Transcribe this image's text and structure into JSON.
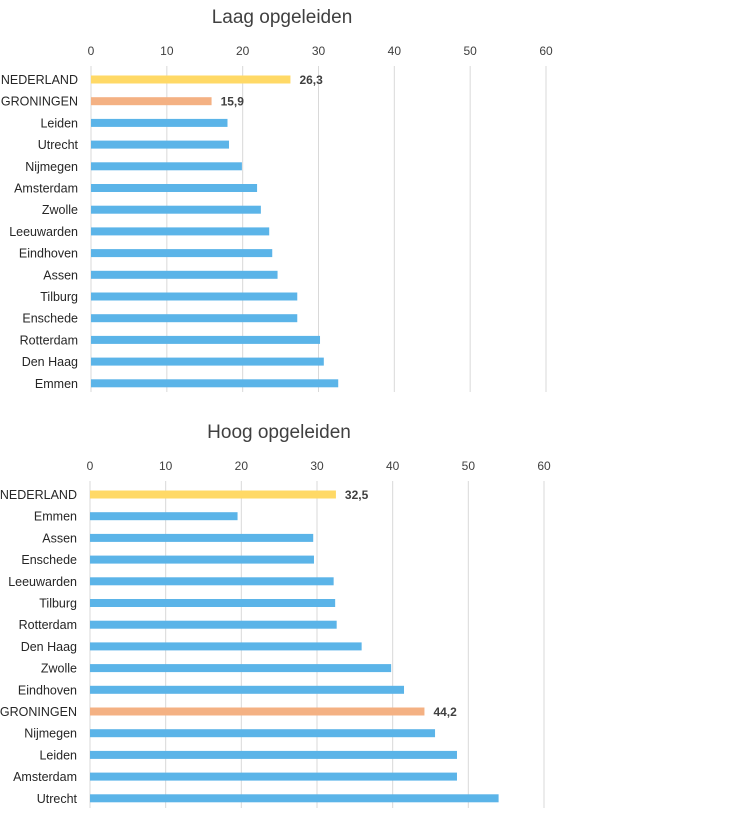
{
  "colors": {
    "default": "#5BB4E8",
    "nederland": "#FFD966",
    "groningen": "#F4B183"
  },
  "chart_data": [
    {
      "type": "bar",
      "orientation": "horizontal",
      "title": "Laag opgeleiden",
      "xlim": [
        0,
        60
      ],
      "xticks": [
        "0",
        "10",
        "20",
        "30",
        "40",
        "50",
        "60"
      ],
      "grid": true,
      "axis_position": "top",
      "categories": [
        "NEDERLAND",
        "GRONINGEN",
        "Leiden",
        "Utrecht",
        "Nijmegen",
        "Amsterdam",
        "Zwolle",
        "Leeuwarden",
        "Eindhoven",
        "Assen",
        "Tilburg",
        "Enschede",
        "Rotterdam",
        "Den Haag",
        "Emmen"
      ],
      "values": [
        26.3,
        15.9,
        18.0,
        18.2,
        19.9,
        21.9,
        22.4,
        23.5,
        23.9,
        24.6,
        27.2,
        27.2,
        30.2,
        30.7,
        32.6
      ],
      "highlight": [
        "nederland",
        "groningen",
        "default",
        "default",
        "default",
        "default",
        "default",
        "default",
        "default",
        "default",
        "default",
        "default",
        "default",
        "default",
        "default"
      ],
      "data_labels": [
        "26,3",
        "15,9",
        "",
        "",
        "",
        "",
        "",
        "",
        "",
        "",
        "",
        "",
        "",
        "",
        ""
      ]
    },
    {
      "type": "bar",
      "orientation": "horizontal",
      "title": "Hoog opgeleiden",
      "xlim": [
        0,
        60
      ],
      "xticks": [
        "0",
        "10",
        "20",
        "30",
        "40",
        "50",
        "60"
      ],
      "grid": true,
      "axis_position": "top",
      "categories": [
        "NEDERLAND",
        "Emmen",
        "Assen",
        "Enschede",
        "Leeuwarden",
        "Tilburg",
        "Rotterdam",
        "Den Haag",
        "Zwolle",
        "Eindhoven",
        "GRONINGEN",
        "Nijmegen",
        "Leiden",
        "Amsterdam",
        "Utrecht"
      ],
      "values": [
        32.5,
        19.5,
        29.5,
        29.6,
        32.2,
        32.4,
        32.6,
        35.9,
        39.8,
        41.5,
        44.2,
        45.6,
        48.5,
        48.5,
        54.0
      ],
      "highlight": [
        "nederland",
        "default",
        "default",
        "default",
        "default",
        "default",
        "default",
        "default",
        "default",
        "default",
        "groningen",
        "default",
        "default",
        "default",
        "default"
      ],
      "data_labels": [
        "32,5",
        "",
        "",
        "",
        "",
        "",
        "",
        "",
        "",
        "",
        "44,2",
        "",
        "",
        "",
        ""
      ]
    }
  ]
}
